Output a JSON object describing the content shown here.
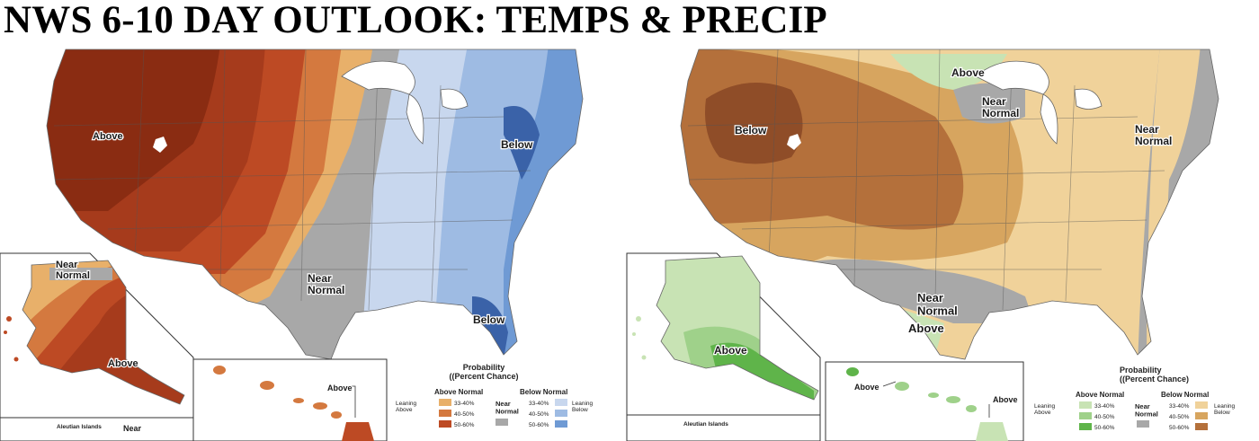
{
  "title": "NWS 6-10 DAY OUTLOOK:  TEMPS & PRECIP",
  "temperature_map": {
    "labels": {
      "above_west": "Above",
      "near_normal_tx": "Near Normal",
      "below_east": "Below",
      "below_fl": "Below",
      "ak_near_normal": "Near Normal",
      "ak_above": "Above",
      "hi_above": "Above",
      "aleutian": "Aleutian Islands",
      "near_cut": "Near"
    },
    "legend": {
      "title": "Probability (Percent Chance)",
      "above_header": "Above Normal",
      "below_header": "Below Normal",
      "leaning_above": "Leaning Above",
      "leaning_below": "Leaning Below",
      "near": "Near Normal",
      "above_bins": [
        "33-40%",
        "40-50%",
        "50-60%"
      ],
      "below_bins": [
        "33-40%",
        "40-50%",
        "50-60%"
      ],
      "above_colors": [
        "#e8b06a",
        "#d4793f",
        "#bd4a24"
      ],
      "below_colors": [
        "#c8d7ee",
        "#9ebbe3",
        "#6f9ad4"
      ],
      "near_color": "#a8a8a8"
    }
  },
  "precip_map": {
    "labels": {
      "above_north": "Above",
      "near_normal_mn": "Near Normal",
      "below_west": "Below",
      "near_normal_ne": "Near Normal",
      "near_normal_tx": "Near Normal",
      "above_tx": "Above",
      "ak_above": "Above",
      "hi_above_left": "Above",
      "hi_above_right": "Above",
      "aleutian": "Aleutian Islands"
    },
    "legend": {
      "title": "Probability (Percent Chance)",
      "above_header": "Above Normal",
      "below_header": "Below Normal",
      "leaning_above": "Leaning Above",
      "leaning_below": "Leaning Below",
      "near": "Near Normal",
      "above_bins": [
        "33-40%",
        "40-50%",
        "50-60%"
      ],
      "below_bins": [
        "33-40%",
        "40-50%",
        "50-60%"
      ],
      "above_colors": [
        "#c8e3b4",
        "#9fd18a",
        "#5fb44a"
      ],
      "below_colors": [
        "#f0d29a",
        "#d7a55f",
        "#b4703b"
      ],
      "near_color": "#a8a8a8"
    }
  }
}
